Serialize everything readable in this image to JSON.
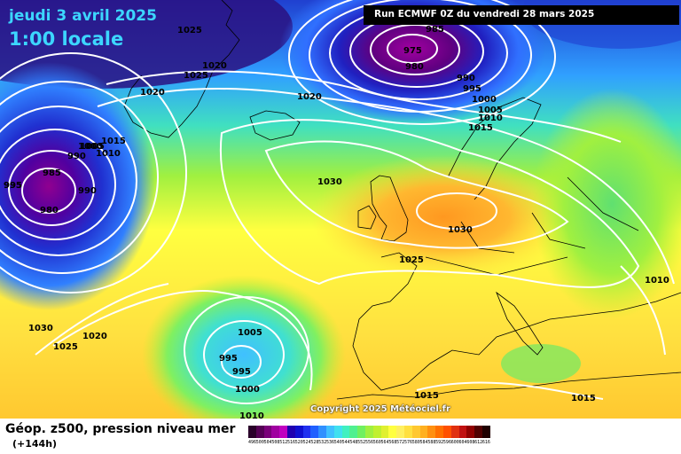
{
  "header": {
    "date": "jeudi 3 avril 2025",
    "local_time": "1:00 locale",
    "run": "Run ECMWF 0Z du vendredi 28 mars 2025"
  },
  "footer": {
    "description": "Géop. z500, pression niveau mer",
    "horizon": "(+144h)",
    "copyright": "Copyright 2025 Météociel.fr"
  },
  "legend": {
    "unit_values": [
      496,
      500,
      504,
      508,
      512,
      516,
      520,
      524,
      528,
      532,
      536,
      540,
      544,
      548,
      552,
      556,
      560,
      564,
      568,
      572,
      576,
      580,
      584,
      588,
      592,
      596,
      600,
      604,
      608,
      612,
      616
    ],
    "colors": [
      "#2a002a",
      "#550055",
      "#7a007a",
      "#a000a0",
      "#c000c0",
      "#2000b0",
      "#1010d0",
      "#2030f0",
      "#2060ff",
      "#3090ff",
      "#40c0ff",
      "#40e0f0",
      "#40f0c0",
      "#50f090",
      "#70f060",
      "#a0f040",
      "#c0f030",
      "#e0f030",
      "#ffff40",
      "#fff060",
      "#ffe040",
      "#ffc830",
      "#ffb020",
      "#ff9010",
      "#ff7000",
      "#ff5000",
      "#e03010",
      "#c01010",
      "#900000",
      "#500000",
      "#200000"
    ]
  },
  "pressure_labels": [
    {
      "text": "1025"
    },
    {
      "text": "1020"
    },
    {
      "text": "1025"
    },
    {
      "text": "1020"
    },
    {
      "text": "1015"
    },
    {
      "text": "1010"
    },
    {
      "text": "1005"
    },
    {
      "text": "1000"
    },
    {
      "text": "995"
    },
    {
      "text": "990"
    },
    {
      "text": "985"
    },
    {
      "text": "980"
    },
    {
      "text": "995"
    },
    {
      "text": "990"
    },
    {
      "text": "985"
    },
    {
      "text": "975"
    },
    {
      "text": "980"
    },
    {
      "text": "990"
    },
    {
      "text": "995"
    },
    {
      "text": "1000"
    },
    {
      "text": "1005"
    },
    {
      "text": "1010"
    },
    {
      "text": "1015"
    },
    {
      "text": "1020"
    },
    {
      "text": "1030"
    },
    {
      "text": "1030"
    },
    {
      "text": "1025"
    },
    {
      "text": "1010"
    },
    {
      "text": "1030"
    },
    {
      "text": "1025"
    },
    {
      "text": "1020"
    },
    {
      "text": "1005"
    },
    {
      "text": "995"
    },
    {
      "text": "995"
    },
    {
      "text": "1000"
    },
    {
      "text": "1015"
    },
    {
      "text": "1015"
    },
    {
      "text": "1010"
    }
  ]
}
